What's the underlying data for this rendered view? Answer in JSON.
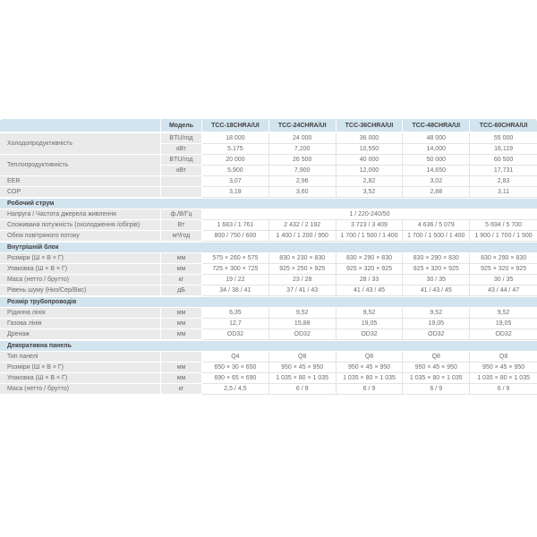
{
  "colors": {
    "header_bg": "#d2e4ee",
    "label_bg": "#eaeaea",
    "value_border": "#e3e3e3",
    "text": "#6b6b6b",
    "heading_text": "#3f3f3f"
  },
  "table": {
    "header": {
      "model_label": "Модель",
      "models": [
        "TCC-18CHRA/UI",
        "TCC-24CHRA/UI",
        "TCC-36CHRA/UI",
        "TCC-48CHRA/UI",
        "TCC-60CHRA/UI"
      ]
    },
    "sections": [
      {
        "title": null,
        "rows": [
          {
            "label": "Холодопродуктивність",
            "labelRowspan": 2,
            "unit": "BTU/год",
            "values": [
              "18 000",
              "24 000",
              "36 000",
              "48 000",
              "55 000"
            ]
          },
          {
            "label": null,
            "unit": "кВт",
            "values": [
              "5,175",
              "7,200",
              "10,550",
              "14,000",
              "16,119"
            ]
          },
          {
            "label": "Теплопродуктивність",
            "labelRowspan": 2,
            "unit": "BTU/год",
            "values": [
              "20 000",
              "26 500",
              "40 000",
              "50 000",
              "60 500"
            ]
          },
          {
            "label": null,
            "unit": "кВт",
            "values": [
              "5,900",
              "7,900",
              "12,000",
              "14,650",
              "17,731"
            ]
          },
          {
            "label": "EER",
            "unit": "",
            "values": [
              "3,07",
              "2,96",
              "2,82",
              "3,02",
              "2,83"
            ]
          },
          {
            "label": "COP",
            "unit": "",
            "values": [
              "3,18",
              "3,60",
              "3,52",
              "2,88",
              "3,11"
            ]
          }
        ]
      },
      {
        "title": "Робочий струм",
        "rows": [
          {
            "label": "Напруга / Частота джерела живлення",
            "unit": "ф./В/Гц",
            "merged": "1 / 220-240/50"
          },
          {
            "label": "Споживана потужність (охолодження /обігрів)",
            "unit": "Вт",
            "values": [
              "1 683 / 1 761",
              "2 432 / 2 192",
              "3 723 / 3 409",
              "4 636 / 5 079",
              "5 694 / 5 700"
            ]
          },
          {
            "label": "Обєм повітряного потоку",
            "unit": "м³/год",
            "values": [
              "800 / 750 / 600",
              "1 400 / 1 200 / 950",
              "1 700 / 1 500 / 1 400",
              "1 700 / 1 500 / 1 400",
              "1 900 / 1 700 / 1 500"
            ]
          }
        ]
      },
      {
        "title": "Внутрішній блок",
        "rows": [
          {
            "label": "Розміри (Ш × В × Г)",
            "unit": "мм",
            "values": [
              "575 × 260 × 575",
              "830 × 230 × 830",
              "830 × 290 × 830",
              "830 × 290 × 830",
              "830 × 290 × 830"
            ]
          },
          {
            "label": "Упаковка (Ш × В × Г)",
            "unit": "мм",
            "values": [
              "725 × 300 × 725",
              "925 × 250 × 925",
              "925 × 320 × 925",
              "925 × 320 × 925",
              "925 × 320 × 925"
            ]
          },
          {
            "label": "Маса (нетто / брутто)",
            "unit": "кг",
            "values": [
              "19 / 22",
              "23 / 28",
              "28 / 33",
              "30 / 35",
              "30 / 35"
            ]
          },
          {
            "label": "Рівень шуму (Низ/Сер/Вис)",
            "unit": "дБ",
            "values": [
              "34 / 38 / 41",
              "37 / 41 / 43",
              "41 / 43 / 45",
              "41 / 43 / 45",
              "43 / 44 / 47"
            ]
          }
        ]
      },
      {
        "title": "Розмір трубопроводів",
        "rows": [
          {
            "label": "Рідинна лінія",
            "unit": "мм",
            "values": [
              "6,35",
              "9,52",
              "9,52",
              "9,52",
              "9,52"
            ]
          },
          {
            "label": "Газова лінія",
            "unit": "мм",
            "values": [
              "12,7",
              "15,88",
              "19,05",
              "19,05",
              "19,05"
            ]
          },
          {
            "label": "Дренаж",
            "unit": "мм",
            "values": [
              "OD32",
              "OD32",
              "OD32",
              "OD32",
              "OD32"
            ]
          }
        ]
      },
      {
        "title": "Декоративна панель",
        "rows": [
          {
            "label": "Тип панелі",
            "unit": "",
            "values": [
              "Q4",
              "Q8",
              "Q8",
              "Q8",
              "Q8"
            ]
          },
          {
            "label": "Розміри (Ш × В × Г)",
            "unit": "мм",
            "values": [
              "650 × 30 × 650",
              "950 × 45 × 950",
              "950 × 45 × 950",
              "950 × 45 × 950",
              "950 × 45 × 950"
            ]
          },
          {
            "label": "Упаковка (Ш × В × Г)",
            "unit": "мм",
            "values": [
              "690 × 65 × 690",
              "1 035 × 80 × 1 035",
              "1 035 × 80 × 1 035",
              "1 035 × 80 × 1 035",
              "1 035 × 80 × 1 035"
            ]
          },
          {
            "label": "Маса (нетто / брутто)",
            "unit": "кг",
            "values": [
              "2,5 / 4,5",
              "6 / 9",
              "6 / 9",
              "6 / 9",
              "6 / 9"
            ]
          }
        ]
      }
    ]
  }
}
